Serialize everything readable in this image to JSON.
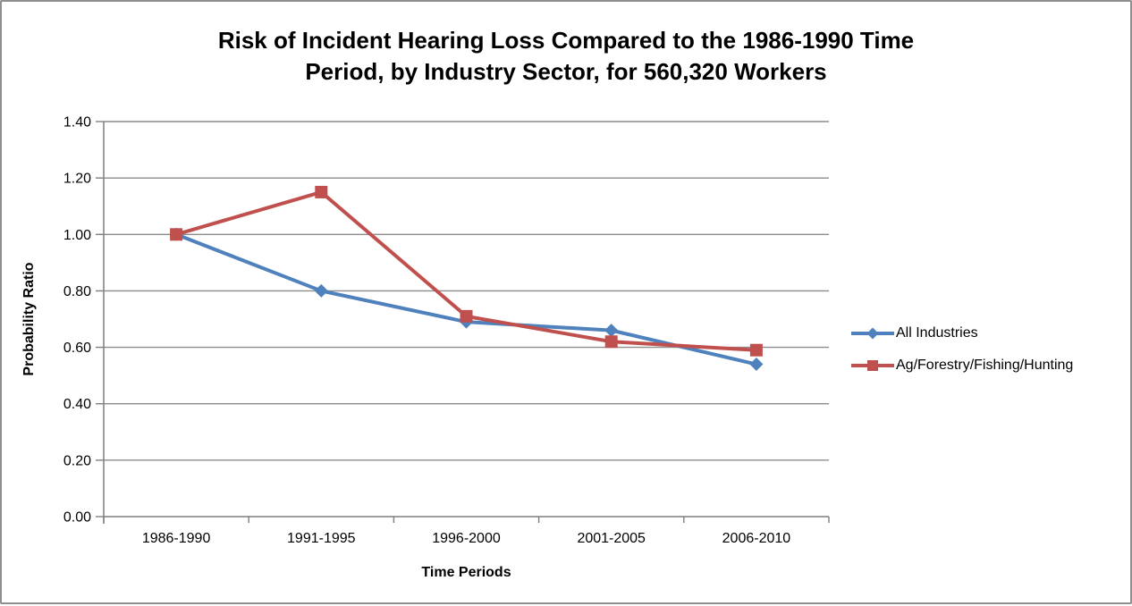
{
  "window": {
    "background": "#ffffff",
    "border_color": "#8f8f8f"
  },
  "chart_data": {
    "type": "line",
    "title": "Risk of Incident Hearing Loss Compared to the 1986-1990 Time Period, by Industry Sector, for 560,320 Workers",
    "title_lines": [
      "Risk of Incident Hearing Loss Compared to the 1986-1990 Time",
      "Period, by Industry Sector, for 560,320 Workers"
    ],
    "xlabel": "Time Periods",
    "ylabel": "Probability Ratio",
    "categories": [
      "1986-1990",
      "1991-1995",
      "1996-2000",
      "2001-2005",
      "2006-2010"
    ],
    "series": [
      {
        "name": "All Industries",
        "values": [
          1.0,
          0.8,
          0.69,
          0.66,
          0.54
        ],
        "color": "#4F81BD",
        "marker": "diamond"
      },
      {
        "name": "Ag/Forestry/Fishing/Hunting",
        "values": [
          1.0,
          1.15,
          0.71,
          0.62,
          0.59
        ],
        "color": "#C0504D",
        "marker": "square"
      }
    ],
    "ylim": [
      0,
      1.4
    ],
    "y_ticks": [
      "0.00",
      "0.20",
      "0.40",
      "0.60",
      "0.80",
      "1.00",
      "1.20",
      "1.40"
    ],
    "grid": "horizontal",
    "legend_position": "right",
    "axis_color": "#7f7f7f",
    "gridline_color": "#8c8c8c"
  }
}
